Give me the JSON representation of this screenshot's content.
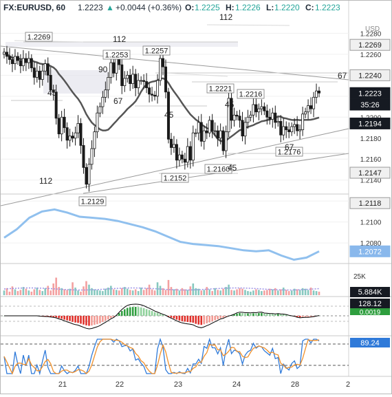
{
  "header": {
    "symbol": "FX:EURUSD, 60",
    "last": "1.2223",
    "change_arrow": "▲",
    "change": "+0.0044 (+0.36%)",
    "open_label": "O:",
    "open": "1.2225",
    "high_label": "H:",
    "high": "1.2226",
    "low_label": "L:",
    "low": "1.2220",
    "close_label": "C:",
    "close": "1.2223",
    "up_color": "#26a69a"
  },
  "price_axis": {
    "currency": "USD",
    "ticks": [
      "1.2280",
      "1.2260",
      "1.2240",
      "1.2220",
      "1.2200",
      "1.2180",
      "1.2160",
      "1.2140",
      "1.2120",
      "1.2100",
      "1.2080"
    ],
    "tick_values": [
      1.228,
      1.226,
      1.224,
      1.222,
      1.22,
      1.218,
      1.216,
      1.214,
      1.212,
      1.21,
      1.208
    ],
    "ylim": [
      1.2063,
      1.2298
    ]
  },
  "price_boxes": [
    {
      "text": "1.2269",
      "value": 1.2269,
      "style": "light"
    },
    {
      "text": "1.2240",
      "value": 1.224,
      "style": "light"
    },
    {
      "text": "1.2223",
      "value": 1.2223,
      "style": "dark"
    },
    {
      "text": "35:26",
      "value": 1.2212,
      "style": "dark"
    },
    {
      "text": "1.2194",
      "value": 1.2194,
      "style": "dark"
    },
    {
      "text": "1.2147",
      "value": 1.2147,
      "style": "light"
    },
    {
      "text": "1.2118",
      "value": 1.2118,
      "style": "light"
    },
    {
      "text": "1.2072",
      "value": 1.2072,
      "style": "blue"
    }
  ],
  "x_axis": {
    "labels": [
      "21",
      "22",
      "23",
      "24",
      "28",
      "2"
    ]
  },
  "chart_data": {
    "type": "candlestick",
    "symbol": "FX:EURUSD",
    "interval": "60",
    "ylim": [
      1.2063,
      1.2298
    ],
    "hourly_close": [
      1.2262,
      1.2258,
      1.2255,
      1.2251,
      1.2258,
      1.2254,
      1.2249,
      1.2256,
      1.2252,
      1.2256,
      1.2247,
      1.2238,
      1.2244,
      1.2236,
      1.2244,
      1.2251,
      1.224,
      1.2226,
      1.2224,
      1.2199,
      1.2184,
      1.22,
      1.219,
      1.2178,
      1.2182,
      1.218,
      1.2185,
      1.2194,
      1.2173,
      1.2152,
      1.2136,
      1.2155,
      1.217,
      1.2186,
      1.2204,
      1.221,
      1.2219,
      1.2226,
      1.2238,
      1.2252,
      1.2242,
      1.2256,
      1.225,
      1.223,
      1.2237,
      1.224,
      1.2232,
      1.2241,
      1.2228,
      1.2235,
      1.2235,
      1.2234,
      1.2228,
      1.2222,
      1.2221,
      1.222,
      1.2235,
      1.2256,
      1.2248,
      1.2224,
      1.2179,
      1.2171,
      1.2174,
      1.2159,
      1.2164,
      1.216,
      1.2157,
      1.2172,
      1.2159,
      1.2185,
      1.2185,
      1.2195,
      1.2177,
      1.2187,
      1.2185,
      1.2197,
      1.2187,
      1.2187,
      1.218,
      1.2187,
      1.2168,
      1.2186,
      1.2218,
      1.2197,
      1.2202,
      1.2201,
      1.2197,
      1.2182,
      1.2195,
      1.22,
      1.2202,
      1.2212,
      1.2205,
      1.2208,
      1.221,
      1.2206,
      1.22,
      1.2198,
      1.2204,
      1.2195,
      1.2196,
      1.2183,
      1.2191,
      1.2188,
      1.2186,
      1.2191,
      1.2193,
      1.2187,
      1.2188,
      1.2203,
      1.2205,
      1.2211,
      1.2208,
      1.2219,
      1.2225,
      1.2223
    ],
    "moving_averages": [
      {
        "color": "#555555",
        "ends": [
          1.2214,
          1.2194
        ]
      },
      {
        "color": "#90c0ee",
        "ends": [
          1.208,
          1.2072
        ]
      }
    ],
    "annotations": {
      "price_labels": [
        "1.2269",
        "1.2253",
        "1.2257",
        "1.2221",
        "1.2216",
        "1.2160",
        "1.2152",
        "1.2176",
        "1.2129"
      ],
      "gann_labels": [
        "112",
        "112",
        "90",
        "45",
        "67",
        "45",
        "45",
        "67",
        "45",
        "67",
        "112"
      ]
    },
    "volume": {
      "last_label": "5.884K",
      "level_label": "25K"
    },
    "histogram": {
      "label": "128.12",
      "secondary": "0.0019"
    },
    "oscillator": {
      "label": "89.24"
    }
  }
}
